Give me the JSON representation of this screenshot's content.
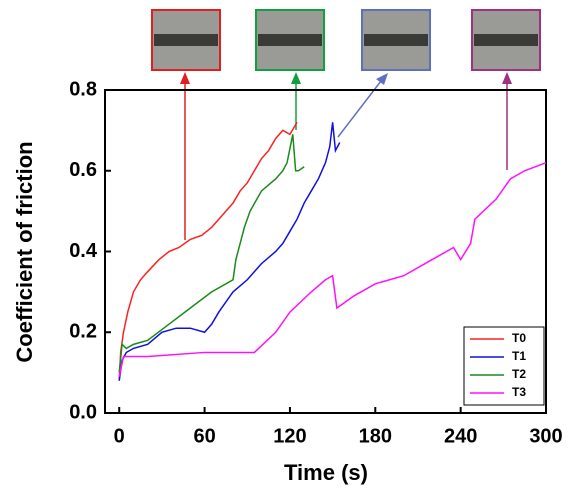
{
  "chart_data": {
    "type": "line",
    "xlabel": "Time (s)",
    "ylabel": "Coefficient of friction",
    "xlim": [
      -10,
      300
    ],
    "xticks": [
      0,
      60,
      120,
      180,
      240,
      300
    ],
    "ylim": [
      0,
      0.8
    ],
    "yticks": [
      {
        "value": 0,
        "label": "0.0"
      },
      0.2,
      0.4,
      0.6,
      0.8
    ],
    "legend": "lower right",
    "series": [
      {
        "name": "T0",
        "color": "#ff2020",
        "x": [
          0,
          1,
          3,
          6,
          10,
          15,
          20,
          28,
          35,
          42,
          50,
          58,
          65,
          70,
          75,
          80,
          85,
          90,
          95,
          100,
          105,
          110,
          115,
          120,
          125
        ],
        "values": [
          0.08,
          0.15,
          0.2,
          0.25,
          0.3,
          0.33,
          0.35,
          0.38,
          0.4,
          0.41,
          0.43,
          0.44,
          0.46,
          0.48,
          0.5,
          0.52,
          0.55,
          0.57,
          0.6,
          0.63,
          0.65,
          0.68,
          0.7,
          0.69,
          0.72
        ]
      },
      {
        "name": "T1",
        "color": "#1010e0",
        "x": [
          0,
          2,
          5,
          10,
          20,
          30,
          40,
          50,
          60,
          65,
          70,
          80,
          90,
          100,
          110,
          115,
          120,
          125,
          130,
          135,
          140,
          145,
          148,
          150,
          152,
          155
        ],
        "values": [
          0.08,
          0.13,
          0.15,
          0.16,
          0.17,
          0.2,
          0.21,
          0.21,
          0.2,
          0.22,
          0.25,
          0.3,
          0.33,
          0.37,
          0.4,
          0.42,
          0.45,
          0.48,
          0.52,
          0.55,
          0.58,
          0.62,
          0.66,
          0.72,
          0.65,
          0.67
        ]
      },
      {
        "name": "T2",
        "color": "#1a8a1a",
        "x": [
          0,
          2,
          5,
          10,
          20,
          35,
          50,
          65,
          80,
          82,
          85,
          88,
          92,
          100,
          110,
          115,
          118,
          122,
          124,
          126,
          130
        ],
        "values": [
          0.1,
          0.17,
          0.16,
          0.17,
          0.18,
          0.22,
          0.26,
          0.3,
          0.33,
          0.38,
          0.42,
          0.46,
          0.5,
          0.55,
          0.58,
          0.6,
          0.62,
          0.69,
          0.6,
          0.6,
          0.61
        ]
      },
      {
        "name": "T3",
        "color": "#ff10ff",
        "x": [
          0,
          3,
          20,
          60,
          95,
          110,
          120,
          135,
          145,
          150,
          153,
          165,
          180,
          200,
          220,
          235,
          240,
          247,
          250,
          265,
          275,
          285,
          300
        ],
        "values": [
          0.09,
          0.14,
          0.14,
          0.15,
          0.15,
          0.2,
          0.25,
          0.3,
          0.33,
          0.34,
          0.26,
          0.29,
          0.32,
          0.34,
          0.38,
          0.41,
          0.38,
          0.42,
          0.48,
          0.53,
          0.58,
          0.6,
          0.62
        ]
      }
    ]
  }
}
